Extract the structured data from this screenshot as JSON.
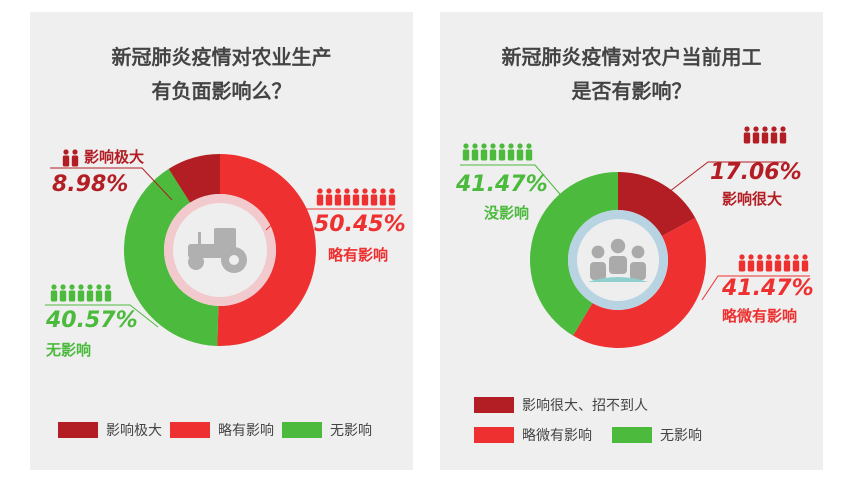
{
  "colors": {
    "dark_red": "#b31e24",
    "red": "#ee3030",
    "green": "#4cba3c",
    "gray": "#b0b0b0"
  },
  "chart_data": [
    {
      "type": "pie",
      "title": "新冠肺炎疫情对农业生产有负面影响么？",
      "title_lines": [
        "新冠肺炎疫情对农业生产",
        "有负面影响么？"
      ],
      "center_icon": "tractor-icon",
      "slices": [
        {
          "label": "略有影响",
          "value": 50.45,
          "pct_text": "50.45%",
          "color": "#ee3030"
        },
        {
          "label": "无影响",
          "value": 40.57,
          "pct_text": "40.57%",
          "color": "#4cba3c"
        },
        {
          "label": "影响极大",
          "value": 8.98,
          "pct_text": "8.98%",
          "color": "#b31e24"
        }
      ],
      "legend": [
        "影响极大",
        "略有影响",
        "无影响"
      ],
      "legend_placement": "bottom"
    },
    {
      "type": "pie",
      "title": "新冠肺炎疫情对农户当前用工是否有影响？",
      "title_lines": [
        "新冠肺炎疫情对农户当前用工",
        "是否有影响？"
      ],
      "center_icon": "meeting-people-icon",
      "slices": [
        {
          "label": "影响很大",
          "value": 17.06,
          "pct_text": "17.06%",
          "color": "#b31e24"
        },
        {
          "label": "略微有影响",
          "value": 41.47,
          "pct_text": "41.47%",
          "color": "#ee3030"
        },
        {
          "label": "没影响",
          "value": 41.47,
          "pct_text": "41.47%",
          "color": "#4cba3c"
        }
      ],
      "legend": [
        "影响很大、招不到人",
        "略微有影响",
        "无影响"
      ],
      "legend_placement": "bottom"
    }
  ]
}
